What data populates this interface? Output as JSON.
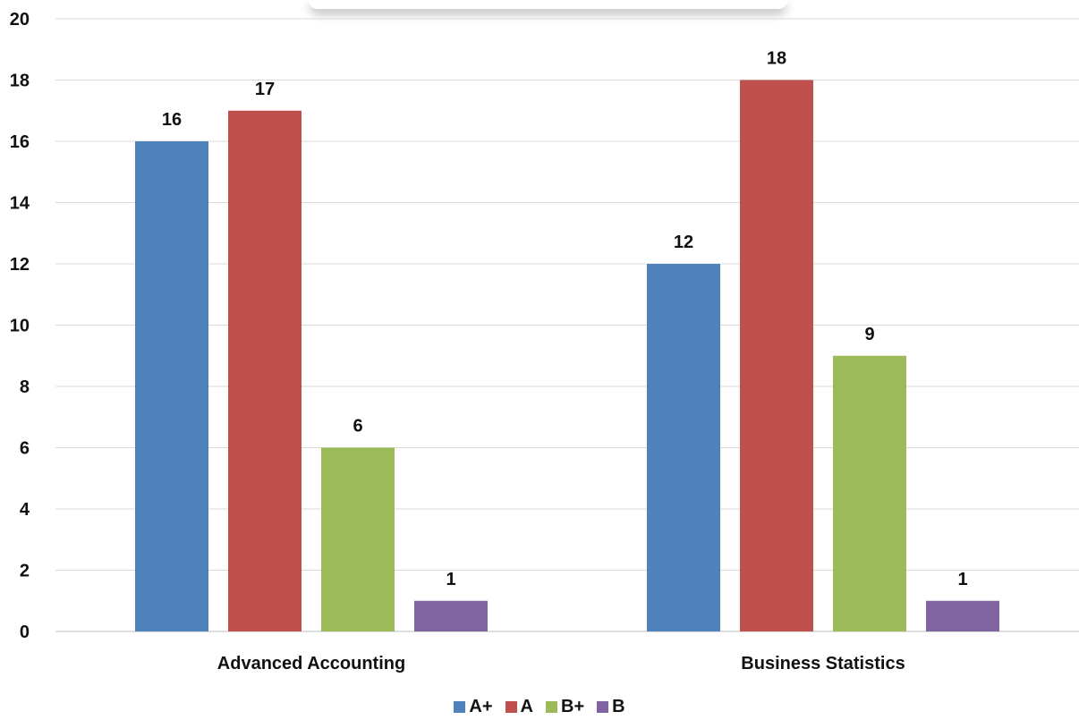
{
  "chart_data": {
    "type": "bar",
    "categories": [
      "Advanced Accounting",
      "Business Statistics"
    ],
    "series": [
      {
        "name": "A+",
        "values": [
          16,
          12
        ],
        "color": "#4F81BD"
      },
      {
        "name": "A",
        "values": [
          17,
          18
        ],
        "color": "#C0504D"
      },
      {
        "name": "B+",
        "values": [
          6,
          9
        ],
        "color": "#9BBB59"
      },
      {
        "name": "B",
        "values": [
          1,
          1
        ],
        "color": "#8064A2"
      }
    ],
    "ylim": [
      0,
      20
    ],
    "yticks": [
      "0",
      "2",
      "4",
      "6",
      "8",
      "10",
      "12",
      "14",
      "16",
      "18",
      "20"
    ],
    "grid": true,
    "legend_position": "bottom",
    "data_labels": true
  }
}
